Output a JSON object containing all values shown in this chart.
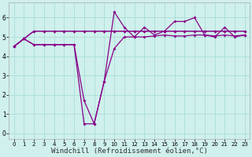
{
  "background_color": "#cff0ec",
  "grid_color": "#aaddda",
  "line_color": "#880088",
  "xlabel": "Windchill (Refroidissement éolien,°C)",
  "xlabel_fontsize": 6.5,
  "xlim": [
    -0.5,
    23.5
  ],
  "ylim": [
    -0.3,
    6.8
  ],
  "yticks": [
    0,
    1,
    2,
    3,
    4,
    5,
    6
  ],
  "xticks": [
    0,
    1,
    2,
    3,
    4,
    5,
    6,
    7,
    8,
    9,
    10,
    11,
    12,
    13,
    14,
    15,
    16,
    17,
    18,
    19,
    20,
    21,
    22,
    23
  ],
  "s1": [
    4.5,
    4.9,
    5.3,
    5.3,
    5.3,
    5.3,
    5.3,
    5.3,
    5.3,
    5.3,
    5.3,
    5.3,
    5.3,
    5.3,
    5.3,
    5.3,
    5.3,
    5.3,
    5.3,
    5.3,
    5.3,
    5.3,
    5.3,
    5.3
  ],
  "s2": [
    4.5,
    4.9,
    5.3,
    5.3,
    5.3,
    5.3,
    5.3,
    5.3,
    5.3,
    5.3,
    5.3,
    5.3,
    5.3,
    5.3,
    5.3,
    5.3,
    5.3,
    5.3,
    5.3,
    5.3,
    5.3,
    5.3,
    5.3,
    5.3
  ],
  "s3": [
    4.5,
    4.9,
    4.6,
    4.6,
    4.6,
    4.6,
    4.6,
    0.5,
    0.5,
    2.7,
    4.4,
    5.0,
    5.0,
    5.0,
    5.05,
    5.1,
    5.05,
    5.05,
    5.1,
    5.1,
    5.05,
    5.1,
    5.05,
    5.1
  ],
  "s4": [
    4.5,
    4.9,
    4.6,
    4.6,
    4.6,
    4.6,
    4.6,
    1.7,
    0.5,
    2.7,
    6.3,
    5.5,
    5.0,
    5.5,
    5.1,
    5.3,
    5.8,
    5.8,
    6.0,
    5.1,
    5.0,
    5.5,
    5.0,
    5.1
  ]
}
